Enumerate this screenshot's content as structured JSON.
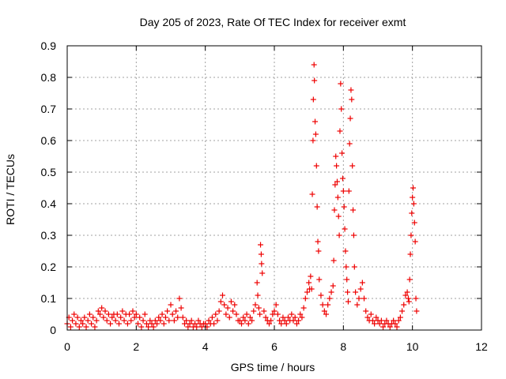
{
  "chart_data": {
    "type": "scatter",
    "title": "Day 205 of 2023, Rate Of TEC Index for receiver exmt",
    "xlabel": "GPS time / hours",
    "ylabel": "ROTI / TECUs",
    "xlim": [
      0,
      12
    ],
    "ylim": [
      0,
      0.9
    ],
    "xticks": [
      0,
      2,
      4,
      6,
      8,
      10,
      12
    ],
    "yticks": [
      0,
      0.1,
      0.2,
      0.3,
      0.4,
      0.5,
      0.6,
      0.7,
      0.8,
      0.9
    ],
    "xtick_labels": [
      "0",
      "2",
      "4",
      "6",
      "8",
      "10",
      "12"
    ],
    "ytick_labels": [
      "0",
      "0.1",
      "0.2",
      "0.3",
      "0.4",
      "0.5",
      "0.6",
      "0.7",
      "0.8",
      "0.9"
    ],
    "grid": true,
    "marker": "plus",
    "color": "#ee0000",
    "series": [
      {
        "points": [
          [
            0.0,
            0.02
          ],
          [
            0.05,
            0.04
          ],
          [
            0.1,
            0.01
          ],
          [
            0.15,
            0.03
          ],
          [
            0.2,
            0.05
          ],
          [
            0.25,
            0.02
          ],
          [
            0.3,
            0.04
          ],
          [
            0.35,
            0.01
          ],
          [
            0.4,
            0.03
          ],
          [
            0.45,
            0.02
          ],
          [
            0.5,
            0.04
          ],
          [
            0.55,
            0.01
          ],
          [
            0.6,
            0.03
          ],
          [
            0.65,
            0.05
          ],
          [
            0.7,
            0.02
          ],
          [
            0.75,
            0.04
          ],
          [
            0.8,
            0.01
          ],
          [
            0.85,
            0.03
          ],
          [
            0.9,
            0.06
          ],
          [
            0.95,
            0.05
          ],
          [
            1.0,
            0.07
          ],
          [
            1.05,
            0.04
          ],
          [
            1.1,
            0.06
          ],
          [
            1.15,
            0.03
          ],
          [
            1.2,
            0.05
          ],
          [
            1.25,
            0.02
          ],
          [
            1.3,
            0.04
          ],
          [
            1.35,
            0.05
          ],
          [
            1.4,
            0.03
          ],
          [
            1.45,
            0.05
          ],
          [
            1.5,
            0.02
          ],
          [
            1.55,
            0.04
          ],
          [
            1.6,
            0.06
          ],
          [
            1.65,
            0.03
          ],
          [
            1.7,
            0.05
          ],
          [
            1.75,
            0.02
          ],
          [
            1.8,
            0.05
          ],
          [
            1.85,
            0.03
          ],
          [
            1.9,
            0.06
          ],
          [
            1.95,
            0.04
          ],
          [
            2.0,
            0.05
          ],
          [
            2.05,
            0.02
          ],
          [
            2.1,
            0.04
          ],
          [
            2.15,
            0.01
          ],
          [
            2.2,
            0.03
          ],
          [
            2.25,
            0.05
          ],
          [
            2.3,
            0.02
          ],
          [
            2.35,
            0.01
          ],
          [
            2.4,
            0.03
          ],
          [
            2.45,
            0.02
          ],
          [
            2.5,
            0.01
          ],
          [
            2.55,
            0.03
          ],
          [
            2.6,
            0.02
          ],
          [
            2.65,
            0.04
          ],
          [
            2.7,
            0.03
          ],
          [
            2.75,
            0.05
          ],
          [
            2.8,
            0.02
          ],
          [
            2.85,
            0.04
          ],
          [
            2.9,
            0.06
          ],
          [
            2.95,
            0.03
          ],
          [
            3.0,
            0.08
          ],
          [
            3.05,
            0.05
          ],
          [
            3.1,
            0.03
          ],
          [
            3.15,
            0.06
          ],
          [
            3.2,
            0.04
          ],
          [
            3.25,
            0.1
          ],
          [
            3.3,
            0.07
          ],
          [
            3.35,
            0.04
          ],
          [
            3.4,
            0.02
          ],
          [
            3.45,
            0.03
          ],
          [
            3.5,
            0.01
          ],
          [
            3.55,
            0.02
          ],
          [
            3.6,
            0.03
          ],
          [
            3.65,
            0.01
          ],
          [
            3.7,
            0.02
          ],
          [
            3.75,
            0.01
          ],
          [
            3.8,
            0.03
          ],
          [
            3.85,
            0.02
          ],
          [
            3.9,
            0.01
          ],
          [
            3.95,
            0.02
          ],
          [
            4.0,
            0.02
          ],
          [
            4.05,
            0.01
          ],
          [
            4.1,
            0.03
          ],
          [
            4.15,
            0.02
          ],
          [
            4.2,
            0.04
          ],
          [
            4.25,
            0.02
          ],
          [
            4.3,
            0.05
          ],
          [
            4.35,
            0.03
          ],
          [
            4.4,
            0.06
          ],
          [
            4.45,
            0.09
          ],
          [
            4.5,
            0.11
          ],
          [
            4.55,
            0.08
          ],
          [
            4.6,
            0.05
          ],
          [
            4.65,
            0.07
          ],
          [
            4.7,
            0.04
          ],
          [
            4.75,
            0.09
          ],
          [
            4.8,
            0.06
          ],
          [
            4.85,
            0.08
          ],
          [
            4.9,
            0.05
          ],
          [
            4.95,
            0.03
          ],
          [
            5.0,
            0.03
          ],
          [
            5.05,
            0.02
          ],
          [
            5.1,
            0.04
          ],
          [
            5.15,
            0.03
          ],
          [
            5.2,
            0.05
          ],
          [
            5.25,
            0.02
          ],
          [
            5.3,
            0.04
          ],
          [
            5.35,
            0.03
          ],
          [
            5.4,
            0.06
          ],
          [
            5.45,
            0.08
          ],
          [
            5.5,
            0.15
          ],
          [
            5.52,
            0.11
          ],
          [
            5.55,
            0.07
          ],
          [
            5.58,
            0.05
          ],
          [
            5.6,
            0.27
          ],
          [
            5.62,
            0.24
          ],
          [
            5.63,
            0.21
          ],
          [
            5.65,
            0.18
          ],
          [
            5.7,
            0.06
          ],
          [
            5.75,
            0.04
          ],
          [
            5.8,
            0.03
          ],
          [
            5.85,
            0.02
          ],
          [
            5.9,
            0.03
          ],
          [
            5.95,
            0.05
          ],
          [
            6.0,
            0.06
          ],
          [
            6.05,
            0.08
          ],
          [
            6.1,
            0.05
          ],
          [
            6.15,
            0.03
          ],
          [
            6.2,
            0.02
          ],
          [
            6.25,
            0.04
          ],
          [
            6.3,
            0.03
          ],
          [
            6.35,
            0.02
          ],
          [
            6.4,
            0.04
          ],
          [
            6.45,
            0.03
          ],
          [
            6.5,
            0.05
          ],
          [
            6.55,
            0.03
          ],
          [
            6.6,
            0.04
          ],
          [
            6.65,
            0.02
          ],
          [
            6.7,
            0.03
          ],
          [
            6.75,
            0.05
          ],
          [
            6.8,
            0.04
          ],
          [
            6.85,
            0.07
          ],
          [
            6.9,
            0.1
          ],
          [
            6.95,
            0.12
          ],
          [
            7.0,
            0.15
          ],
          [
            7.02,
            0.13
          ],
          [
            7.05,
            0.17
          ],
          [
            7.08,
            0.13
          ],
          [
            7.1,
            0.43
          ],
          [
            7.12,
            0.6
          ],
          [
            7.13,
            0.73
          ],
          [
            7.15,
            0.84
          ],
          [
            7.16,
            0.79
          ],
          [
            7.18,
            0.66
          ],
          [
            7.2,
            0.62
          ],
          [
            7.22,
            0.52
          ],
          [
            7.24,
            0.39
          ],
          [
            7.26,
            0.28
          ],
          [
            7.28,
            0.25
          ],
          [
            7.3,
            0.16
          ],
          [
            7.35,
            0.11
          ],
          [
            7.4,
            0.08
          ],
          [
            7.45,
            0.06
          ],
          [
            7.5,
            0.05
          ],
          [
            7.55,
            0.08
          ],
          [
            7.6,
            0.1
          ],
          [
            7.65,
            0.12
          ],
          [
            7.7,
            0.14
          ],
          [
            7.72,
            0.22
          ],
          [
            7.74,
            0.38
          ],
          [
            7.76,
            0.46
          ],
          [
            7.78,
            0.55
          ],
          [
            7.8,
            0.52
          ],
          [
            7.82,
            0.47
          ],
          [
            7.84,
            0.42
          ],
          [
            7.86,
            0.36
          ],
          [
            7.88,
            0.3
          ],
          [
            7.9,
            0.63
          ],
          [
            7.92,
            0.78
          ],
          [
            7.94,
            0.7
          ],
          [
            7.96,
            0.56
          ],
          [
            7.98,
            0.48
          ],
          [
            8.0,
            0.44
          ],
          [
            8.02,
            0.39
          ],
          [
            8.04,
            0.32
          ],
          [
            8.06,
            0.25
          ],
          [
            8.08,
            0.2
          ],
          [
            8.1,
            0.16
          ],
          [
            8.12,
            0.12
          ],
          [
            8.14,
            0.09
          ],
          [
            8.16,
            0.44
          ],
          [
            8.18,
            0.59
          ],
          [
            8.2,
            0.67
          ],
          [
            8.22,
            0.76
          ],
          [
            8.24,
            0.73
          ],
          [
            8.26,
            0.52
          ],
          [
            8.28,
            0.38
          ],
          [
            8.3,
            0.3
          ],
          [
            8.32,
            0.2
          ],
          [
            8.35,
            0.12
          ],
          [
            8.4,
            0.08
          ],
          [
            8.45,
            0.1
          ],
          [
            8.5,
            0.13
          ],
          [
            8.55,
            0.15
          ],
          [
            8.6,
            0.1
          ],
          [
            8.65,
            0.06
          ],
          [
            8.7,
            0.04
          ],
          [
            8.75,
            0.03
          ],
          [
            8.8,
            0.05
          ],
          [
            8.85,
            0.03
          ],
          [
            8.9,
            0.02
          ],
          [
            8.95,
            0.04
          ],
          [
            9.0,
            0.03
          ],
          [
            9.05,
            0.02
          ],
          [
            9.1,
            0.03
          ],
          [
            9.15,
            0.01
          ],
          [
            9.2,
            0.02
          ],
          [
            9.25,
            0.03
          ],
          [
            9.3,
            0.02
          ],
          [
            9.35,
            0.01
          ],
          [
            9.4,
            0.02
          ],
          [
            9.45,
            0.03
          ],
          [
            9.5,
            0.02
          ],
          [
            9.55,
            0.01
          ],
          [
            9.6,
            0.03
          ],
          [
            9.65,
            0.04
          ],
          [
            9.7,
            0.06
          ],
          [
            9.75,
            0.08
          ],
          [
            9.8,
            0.11
          ],
          [
            9.85,
            0.12
          ],
          [
            9.88,
            0.1
          ],
          [
            9.9,
            0.09
          ],
          [
            9.92,
            0.16
          ],
          [
            9.94,
            0.24
          ],
          [
            9.96,
            0.3
          ],
          [
            9.98,
            0.37
          ],
          [
            10.0,
            0.42
          ],
          [
            10.02,
            0.45
          ],
          [
            10.04,
            0.4
          ],
          [
            10.06,
            0.34
          ],
          [
            10.08,
            0.28
          ],
          [
            10.1,
            0.1
          ],
          [
            10.12,
            0.06
          ]
        ]
      }
    ]
  }
}
